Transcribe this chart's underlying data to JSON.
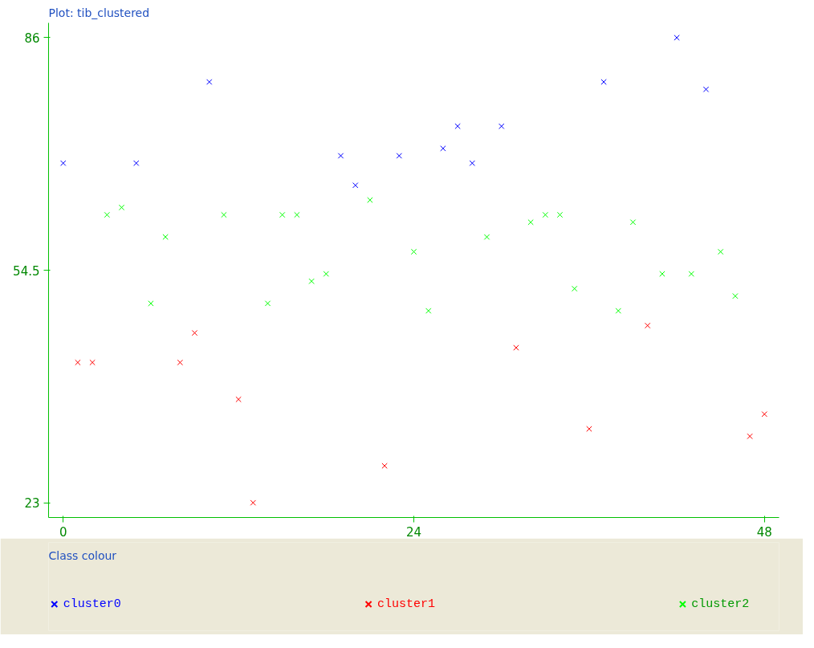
{
  "chart_data": {
    "type": "scatter",
    "title": "Plot: tib_clustered",
    "legend_title": "Class colour",
    "xlim": [
      -1,
      49
    ],
    "ylim": [
      21,
      88
    ],
    "xticks": [
      0,
      24,
      48
    ],
    "yticks": [
      23,
      54.5,
      86
    ],
    "grid": false,
    "legend": "bottom",
    "marker": "cross",
    "series": [
      {
        "name": "cluster0",
        "color": "#0000ff",
        "x": [
          0,
          5,
          10,
          19,
          20,
          23,
          26,
          27,
          28,
          30,
          37,
          42,
          44
        ],
        "values": [
          69,
          69,
          80,
          70,
          66,
          70,
          71,
          74,
          69,
          74,
          80,
          86,
          79
        ]
      },
      {
        "name": "cluster1",
        "color": "#ff0000",
        "x": [
          1,
          2,
          8,
          9,
          12,
          13,
          22,
          31,
          36,
          40,
          47,
          48
        ],
        "values": [
          42,
          42,
          42,
          46,
          37,
          23,
          28,
          44,
          33,
          47,
          32,
          35
        ]
      },
      {
        "name": "cluster2",
        "color": "#00ff00",
        "x": [
          3,
          4,
          6,
          7,
          11,
          14,
          15,
          16,
          17,
          18,
          21,
          24,
          25,
          29,
          32,
          33,
          34,
          35,
          38,
          39,
          41,
          43,
          45,
          46
        ],
        "values": [
          62,
          63,
          50,
          59,
          62,
          50,
          62,
          62,
          53,
          54,
          64,
          57,
          49,
          59,
          61,
          62,
          62,
          52,
          49,
          61,
          54,
          54,
          57,
          51
        ]
      }
    ]
  }
}
